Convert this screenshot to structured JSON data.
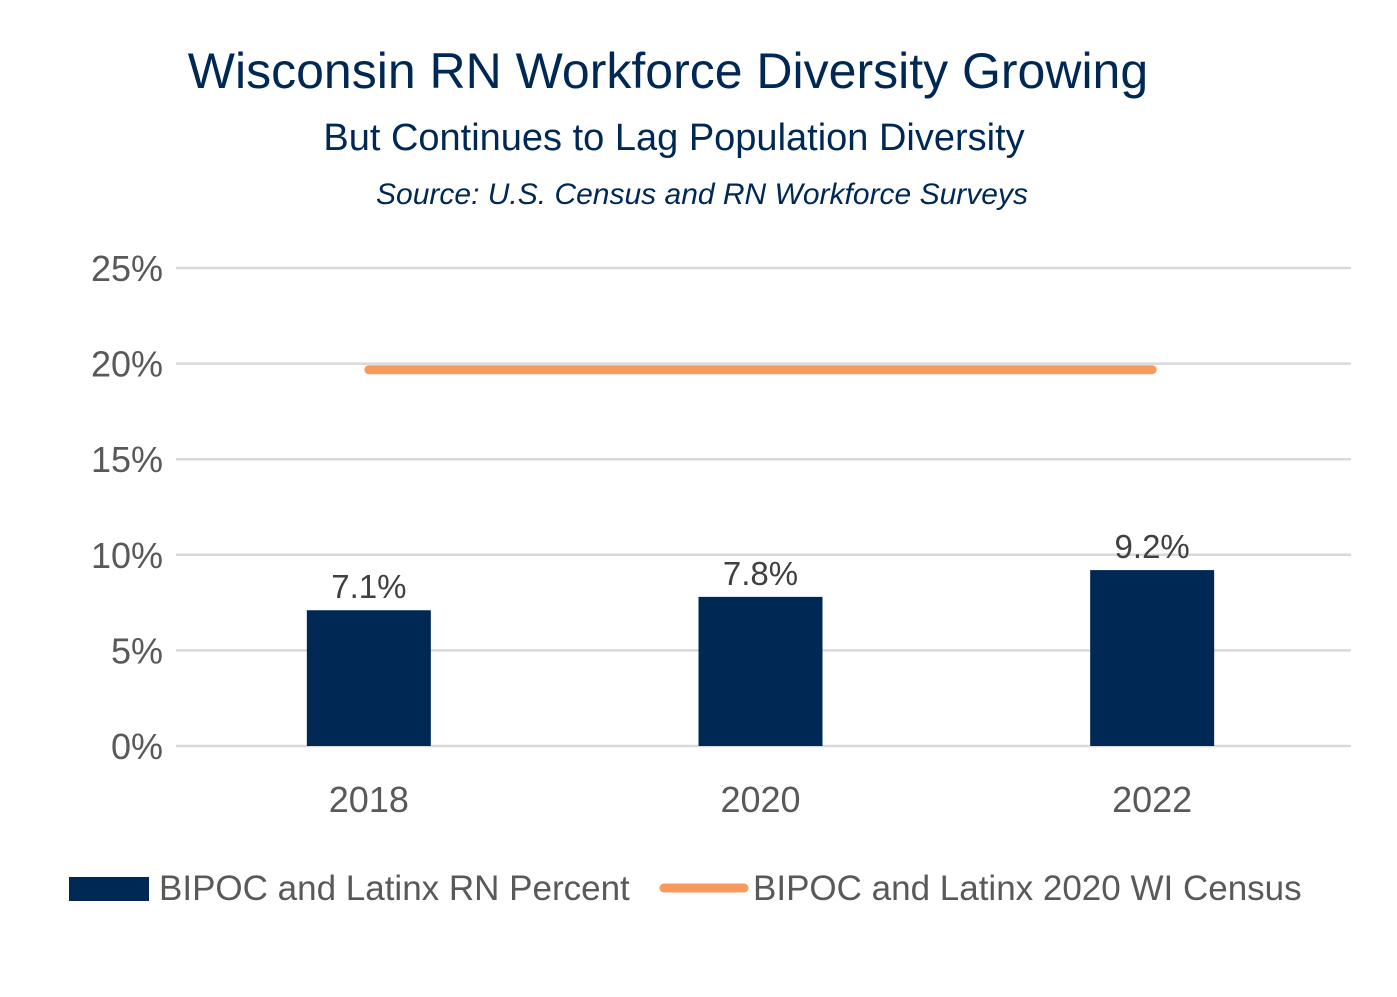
{
  "chart_data": {
    "type": "bar",
    "title": "Wisconsin RN Workforce Diversity Growing",
    "subtitle": "But Continues to Lag Population Diversity",
    "source": "Source: U.S. Census and RN Workforce Surveys",
    "categories": [
      "2018",
      "2020",
      "2022"
    ],
    "series": [
      {
        "name": "BIPOC and Latinx RN Percent",
        "type": "bar",
        "values": [
          7.1,
          7.8,
          9.2
        ],
        "labels": [
          "7.1%",
          "7.8%",
          "9.2%"
        ],
        "color": "#002855"
      },
      {
        "name": "BIPOC and Latinx 2020 WI Census",
        "type": "line",
        "values": [
          19.6,
          19.6,
          19.6
        ],
        "color": "#F79A5E"
      }
    ],
    "y_ticks": [
      {
        "value": 0,
        "label": "0%"
      },
      {
        "value": 5,
        "label": "5%"
      },
      {
        "value": 10,
        "label": "10%"
      },
      {
        "value": 15,
        "label": "15%"
      },
      {
        "value": 20,
        "label": "20%"
      },
      {
        "value": 25,
        "label": "25%"
      }
    ],
    "ylim": [
      0,
      25
    ],
    "xlabel": "",
    "ylabel": "",
    "grid": true,
    "legend_position": "bottom",
    "colors": {
      "title": "#002855",
      "axis_text": "#595959",
      "label_text": "#404040",
      "grid": "#D9D9D9"
    }
  }
}
